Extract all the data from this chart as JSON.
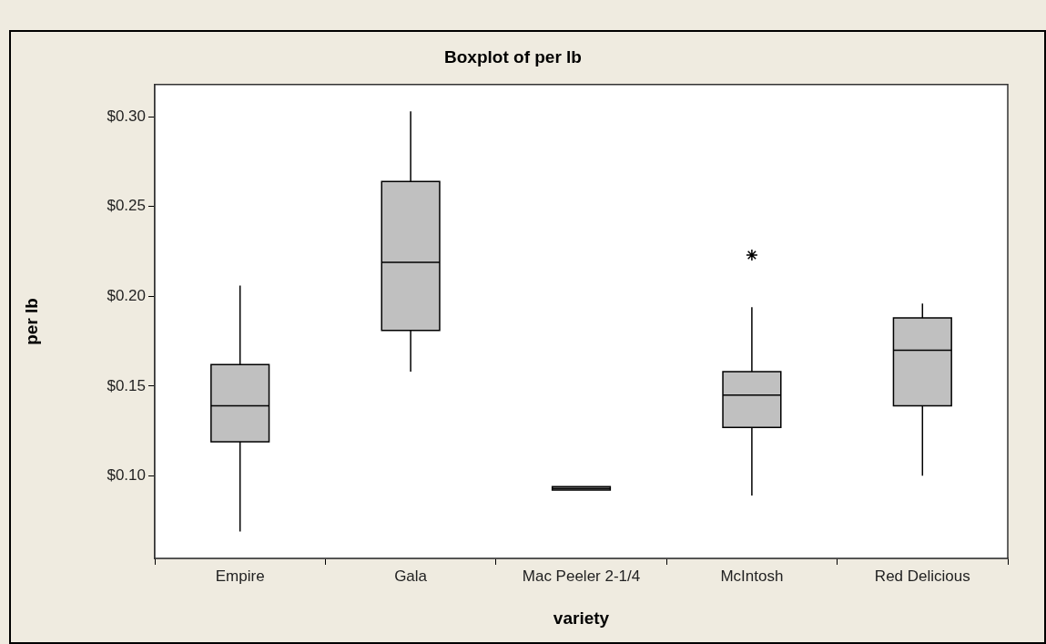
{
  "chart_data": {
    "type": "box",
    "title": "Boxplot of per lb",
    "xlabel": "variety",
    "ylabel": "per lb",
    "categories": [
      "Empire",
      "Gala",
      "Mac Peeler 2-1/4",
      "McIntosh",
      "Red Delicious"
    ],
    "color": "#c0c0c0",
    "boxes": [
      {
        "low": 0.069,
        "q1": 0.119,
        "median": 0.139,
        "q3": 0.162,
        "high": 0.206
      },
      {
        "low": 0.158,
        "q1": 0.181,
        "median": 0.219,
        "q3": 0.264,
        "high": 0.303
      },
      {
        "low": 0.092,
        "q1": 0.092,
        "median": 0.093,
        "q3": 0.094,
        "high": 0.094
      },
      {
        "low": 0.089,
        "q1": 0.127,
        "median": 0.145,
        "q3": 0.158,
        "high": 0.194,
        "outliers": [
          0.223
        ]
      },
      {
        "low": 0.1,
        "q1": 0.139,
        "median": 0.17,
        "q3": 0.188,
        "high": 0.196
      }
    ],
    "ylim": [
      0.054,
      0.318
    ],
    "yticks": [
      {
        "value": 0.1,
        "label": "$0.10"
      },
      {
        "value": 0.15,
        "label": "$0.15"
      },
      {
        "value": 0.2,
        "label": "$0.20"
      },
      {
        "value": 0.25,
        "label": "$0.25"
      },
      {
        "value": 0.3,
        "label": "$0.30"
      }
    ],
    "grid": false,
    "legend": false,
    "marker": "star"
  }
}
